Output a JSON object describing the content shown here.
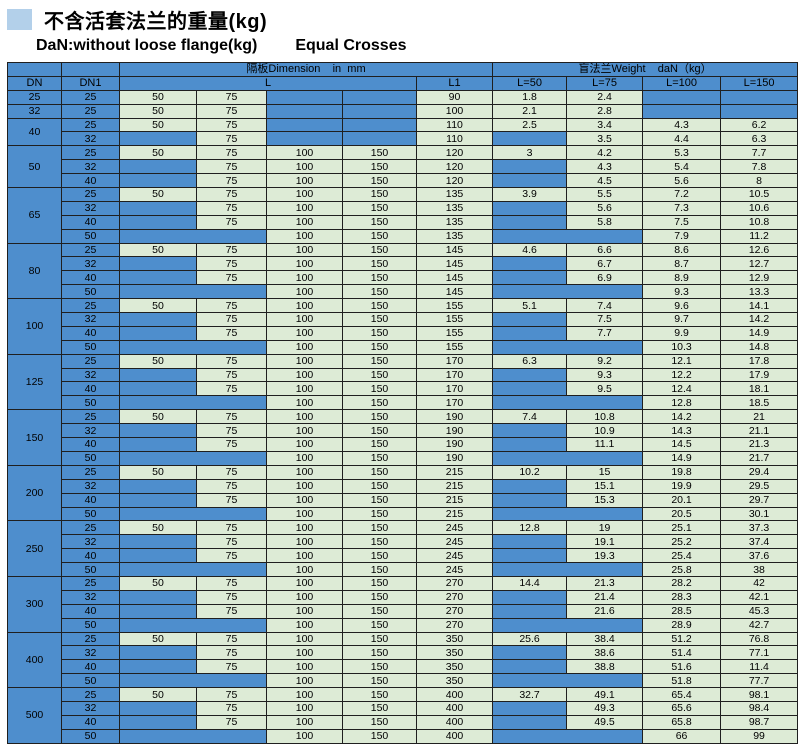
{
  "page": {
    "title_cn": "不含活套法兰的重量(kg)",
    "subtitle_left": "DaN:without loose flange(kg)",
    "subtitle_right": "Equal Crosses"
  },
  "colors": {
    "structure_blue": "#4e8ecd",
    "data_green": "#ddebd6",
    "title_square_blue": "#b3d0ea",
    "border": "#1f1f1f"
  },
  "table": {
    "header": {
      "dim_span": "隔板Dimension    in  mm",
      "weight_span": "盲法兰Weight    daN（kg）",
      "dn": "DN",
      "dn1": "DN1",
      "l": "L",
      "l1": "L1",
      "w_cols": [
        "L=50",
        "L=75",
        "L=100",
        "L=150"
      ]
    },
    "groups": [
      {
        "dn": "25",
        "rows": [
          {
            "dn1": "25",
            "l": [
              "50",
              "75",
              null,
              null
            ],
            "l1": "90",
            "w": [
              "1.8",
              "2.4",
              null,
              null
            ]
          }
        ]
      },
      {
        "dn": "32",
        "rows": [
          {
            "dn1": "25",
            "l": [
              "50",
              "75",
              null,
              null
            ],
            "l1": "100",
            "w": [
              "2.1",
              "2.8",
              null,
              null
            ]
          }
        ]
      },
      {
        "dn": "40",
        "rows": [
          {
            "dn1": "25",
            "l": [
              "50",
              "75",
              null,
              null
            ],
            "l1": "110",
            "w": [
              "2.5",
              "3.4",
              "4.3",
              "6.2"
            ]
          },
          {
            "dn1": "32",
            "l": [
              null,
              "75",
              null,
              null
            ],
            "l1": "110",
            "w": [
              null,
              "3.5",
              "4.4",
              "6.3"
            ]
          }
        ]
      },
      {
        "dn": "50",
        "rows": [
          {
            "dn1": "25",
            "l": [
              "50",
              "75",
              "100",
              "150"
            ],
            "l1": "120",
            "w": [
              "3",
              "4.2",
              "5.3",
              "7.7"
            ]
          },
          {
            "dn1": "32",
            "l": [
              null,
              "75",
              "100",
              "150"
            ],
            "l1": "120",
            "w": [
              null,
              "4.3",
              "5.4",
              "7.8"
            ]
          },
          {
            "dn1": "40",
            "l": [
              null,
              "75",
              "100",
              "150"
            ],
            "l1": "120",
            "w": [
              null,
              "4.5",
              "5.6",
              "8"
            ]
          }
        ]
      },
      {
        "dn": "65",
        "rows": [
          {
            "dn1": "25",
            "l": [
              "50",
              "75",
              "100",
              "150"
            ],
            "l1": "135",
            "w": [
              "3.9",
              "5.5",
              "7.2",
              "10.5"
            ]
          },
          {
            "dn1": "32",
            "l": [
              null,
              "75",
              "100",
              "150"
            ],
            "l1": "135",
            "w": [
              null,
              "5.6",
              "7.3",
              "10.6"
            ]
          },
          {
            "dn1": "40",
            "l": [
              null,
              "75",
              "100",
              "150"
            ],
            "l1": "135",
            "w": [
              null,
              "5.8",
              "7.5",
              "10.8"
            ]
          },
          {
            "dn1": "50",
            "l": [
              null,
              null,
              "100",
              "150"
            ],
            "l1": "135",
            "w": [
              null,
              null,
              "7.9",
              "11.2"
            ]
          }
        ]
      },
      {
        "dn": "80",
        "rows": [
          {
            "dn1": "25",
            "l": [
              "50",
              "75",
              "100",
              "150"
            ],
            "l1": "145",
            "w": [
              "4.6",
              "6.6",
              "8.6",
              "12.6"
            ]
          },
          {
            "dn1": "32",
            "l": [
              null,
              "75",
              "100",
              "150"
            ],
            "l1": "145",
            "w": [
              null,
              "6.7",
              "8.7",
              "12.7"
            ]
          },
          {
            "dn1": "40",
            "l": [
              null,
              "75",
              "100",
              "150"
            ],
            "l1": "145",
            "w": [
              null,
              "6.9",
              "8.9",
              "12.9"
            ]
          },
          {
            "dn1": "50",
            "l": [
              null,
              null,
              "100",
              "150"
            ],
            "l1": "145",
            "w": [
              null,
              null,
              "9.3",
              "13.3"
            ]
          }
        ]
      },
      {
        "dn": "100",
        "rows": [
          {
            "dn1": "25",
            "l": [
              "50",
              "75",
              "100",
              "150"
            ],
            "l1": "155",
            "w": [
              "5.1",
              "7.4",
              "9.6",
              "14.1"
            ]
          },
          {
            "dn1": "32",
            "l": [
              null,
              "75",
              "100",
              "150"
            ],
            "l1": "155",
            "w": [
              null,
              "7.5",
              "9.7",
              "14.2"
            ]
          },
          {
            "dn1": "40",
            "l": [
              null,
              "75",
              "100",
              "150"
            ],
            "l1": "155",
            "w": [
              null,
              "7.7",
              "9.9",
              "14.9"
            ]
          },
          {
            "dn1": "50",
            "l": [
              null,
              null,
              "100",
              "150"
            ],
            "l1": "155",
            "w": [
              null,
              null,
              "10.3",
              "14.8"
            ]
          }
        ]
      },
      {
        "dn": "125",
        "rows": [
          {
            "dn1": "25",
            "l": [
              "50",
              "75",
              "100",
              "150"
            ],
            "l1": "170",
            "w": [
              "6.3",
              "9.2",
              "12.1",
              "17.8"
            ]
          },
          {
            "dn1": "32",
            "l": [
              null,
              "75",
              "100",
              "150"
            ],
            "l1": "170",
            "w": [
              null,
              "9.3",
              "12.2",
              "17.9"
            ]
          },
          {
            "dn1": "40",
            "l": [
              null,
              "75",
              "100",
              "150"
            ],
            "l1": "170",
            "w": [
              null,
              "9.5",
              "12.4",
              "18.1"
            ]
          },
          {
            "dn1": "50",
            "l": [
              null,
              null,
              "100",
              "150"
            ],
            "l1": "170",
            "w": [
              null,
              null,
              "12.8",
              "18.5"
            ]
          }
        ]
      },
      {
        "dn": "150",
        "rows": [
          {
            "dn1": "25",
            "l": [
              "50",
              "75",
              "100",
              "150"
            ],
            "l1": "190",
            "w": [
              "7.4",
              "10.8",
              "14.2",
              "21"
            ]
          },
          {
            "dn1": "32",
            "l": [
              null,
              "75",
              "100",
              "150"
            ],
            "l1": "190",
            "w": [
              null,
              "10.9",
              "14.3",
              "21.1"
            ]
          },
          {
            "dn1": "40",
            "l": [
              null,
              "75",
              "100",
              "150"
            ],
            "l1": "190",
            "w": [
              null,
              "11.1",
              "14.5",
              "21.3"
            ]
          },
          {
            "dn1": "50",
            "l": [
              null,
              null,
              "100",
              "150"
            ],
            "l1": "190",
            "w": [
              null,
              null,
              "14.9",
              "21.7"
            ]
          }
        ]
      },
      {
        "dn": "200",
        "rows": [
          {
            "dn1": "25",
            "l": [
              "50",
              "75",
              "100",
              "150"
            ],
            "l1": "215",
            "w": [
              "10.2",
              "15",
              "19.8",
              "29.4"
            ]
          },
          {
            "dn1": "32",
            "l": [
              null,
              "75",
              "100",
              "150"
            ],
            "l1": "215",
            "w": [
              null,
              "15.1",
              "19.9",
              "29.5"
            ]
          },
          {
            "dn1": "40",
            "l": [
              null,
              "75",
              "100",
              "150"
            ],
            "l1": "215",
            "w": [
              null,
              "15.3",
              "20.1",
              "29.7"
            ]
          },
          {
            "dn1": "50",
            "l": [
              null,
              null,
              "100",
              "150"
            ],
            "l1": "215",
            "w": [
              null,
              null,
              "20.5",
              "30.1"
            ]
          }
        ]
      },
      {
        "dn": "250",
        "rows": [
          {
            "dn1": "25",
            "l": [
              "50",
              "75",
              "100",
              "150"
            ],
            "l1": "245",
            "w": [
              "12.8",
              "19",
              "25.1",
              "37.3"
            ]
          },
          {
            "dn1": "32",
            "l": [
              null,
              "75",
              "100",
              "150"
            ],
            "l1": "245",
            "w": [
              null,
              "19.1",
              "25.2",
              "37.4"
            ]
          },
          {
            "dn1": "40",
            "l": [
              null,
              "75",
              "100",
              "150"
            ],
            "l1": "245",
            "w": [
              null,
              "19.3",
              "25.4",
              "37.6"
            ]
          },
          {
            "dn1": "50",
            "l": [
              null,
              null,
              "100",
              "150"
            ],
            "l1": "245",
            "w": [
              null,
              null,
              "25.8",
              "38"
            ]
          }
        ]
      },
      {
        "dn": "300",
        "rows": [
          {
            "dn1": "25",
            "l": [
              "50",
              "75",
              "100",
              "150"
            ],
            "l1": "270",
            "w": [
              "14.4",
              "21.3",
              "28.2",
              "42"
            ]
          },
          {
            "dn1": "32",
            "l": [
              null,
              "75",
              "100",
              "150"
            ],
            "l1": "270",
            "w": [
              null,
              "21.4",
              "28.3",
              "42.1"
            ]
          },
          {
            "dn1": "40",
            "l": [
              null,
              "75",
              "100",
              "150"
            ],
            "l1": "270",
            "w": [
              null,
              "21.6",
              "28.5",
              "45.3"
            ]
          },
          {
            "dn1": "50",
            "l": [
              null,
              null,
              "100",
              "150"
            ],
            "l1": "270",
            "w": [
              null,
              null,
              "28.9",
              "42.7"
            ]
          }
        ]
      },
      {
        "dn": "400",
        "rows": [
          {
            "dn1": "25",
            "l": [
              "50",
              "75",
              "100",
              "150"
            ],
            "l1": "350",
            "w": [
              "25.6",
              "38.4",
              "51.2",
              "76.8"
            ]
          },
          {
            "dn1": "32",
            "l": [
              null,
              "75",
              "100",
              "150"
            ],
            "l1": "350",
            "w": [
              null,
              "38.6",
              "51.4",
              "77.1"
            ]
          },
          {
            "dn1": "40",
            "l": [
              null,
              "75",
              "100",
              "150"
            ],
            "l1": "350",
            "w": [
              null,
              "38.8",
              "51.6",
              "11.4"
            ]
          },
          {
            "dn1": "50",
            "l": [
              null,
              null,
              "100",
              "150"
            ],
            "l1": "350",
            "w": [
              null,
              null,
              "51.8",
              "77.7"
            ]
          }
        ]
      },
      {
        "dn": "500",
        "rows": [
          {
            "dn1": "25",
            "l": [
              "50",
              "75",
              "100",
              "150"
            ],
            "l1": "400",
            "w": [
              "32.7",
              "49.1",
              "65.4",
              "98.1"
            ]
          },
          {
            "dn1": "32",
            "l": [
              null,
              "75",
              "100",
              "150"
            ],
            "l1": "400",
            "w": [
              null,
              "49.3",
              "65.6",
              "98.4"
            ]
          },
          {
            "dn1": "40",
            "l": [
              null,
              "75",
              "100",
              "150"
            ],
            "l1": "400",
            "w": [
              null,
              "49.5",
              "65.8",
              "98.7"
            ]
          },
          {
            "dn1": "50",
            "l": [
              null,
              null,
              "100",
              "150"
            ],
            "l1": "400",
            "w": [
              null,
              null,
              "66",
              "99"
            ]
          }
        ]
      }
    ]
  }
}
